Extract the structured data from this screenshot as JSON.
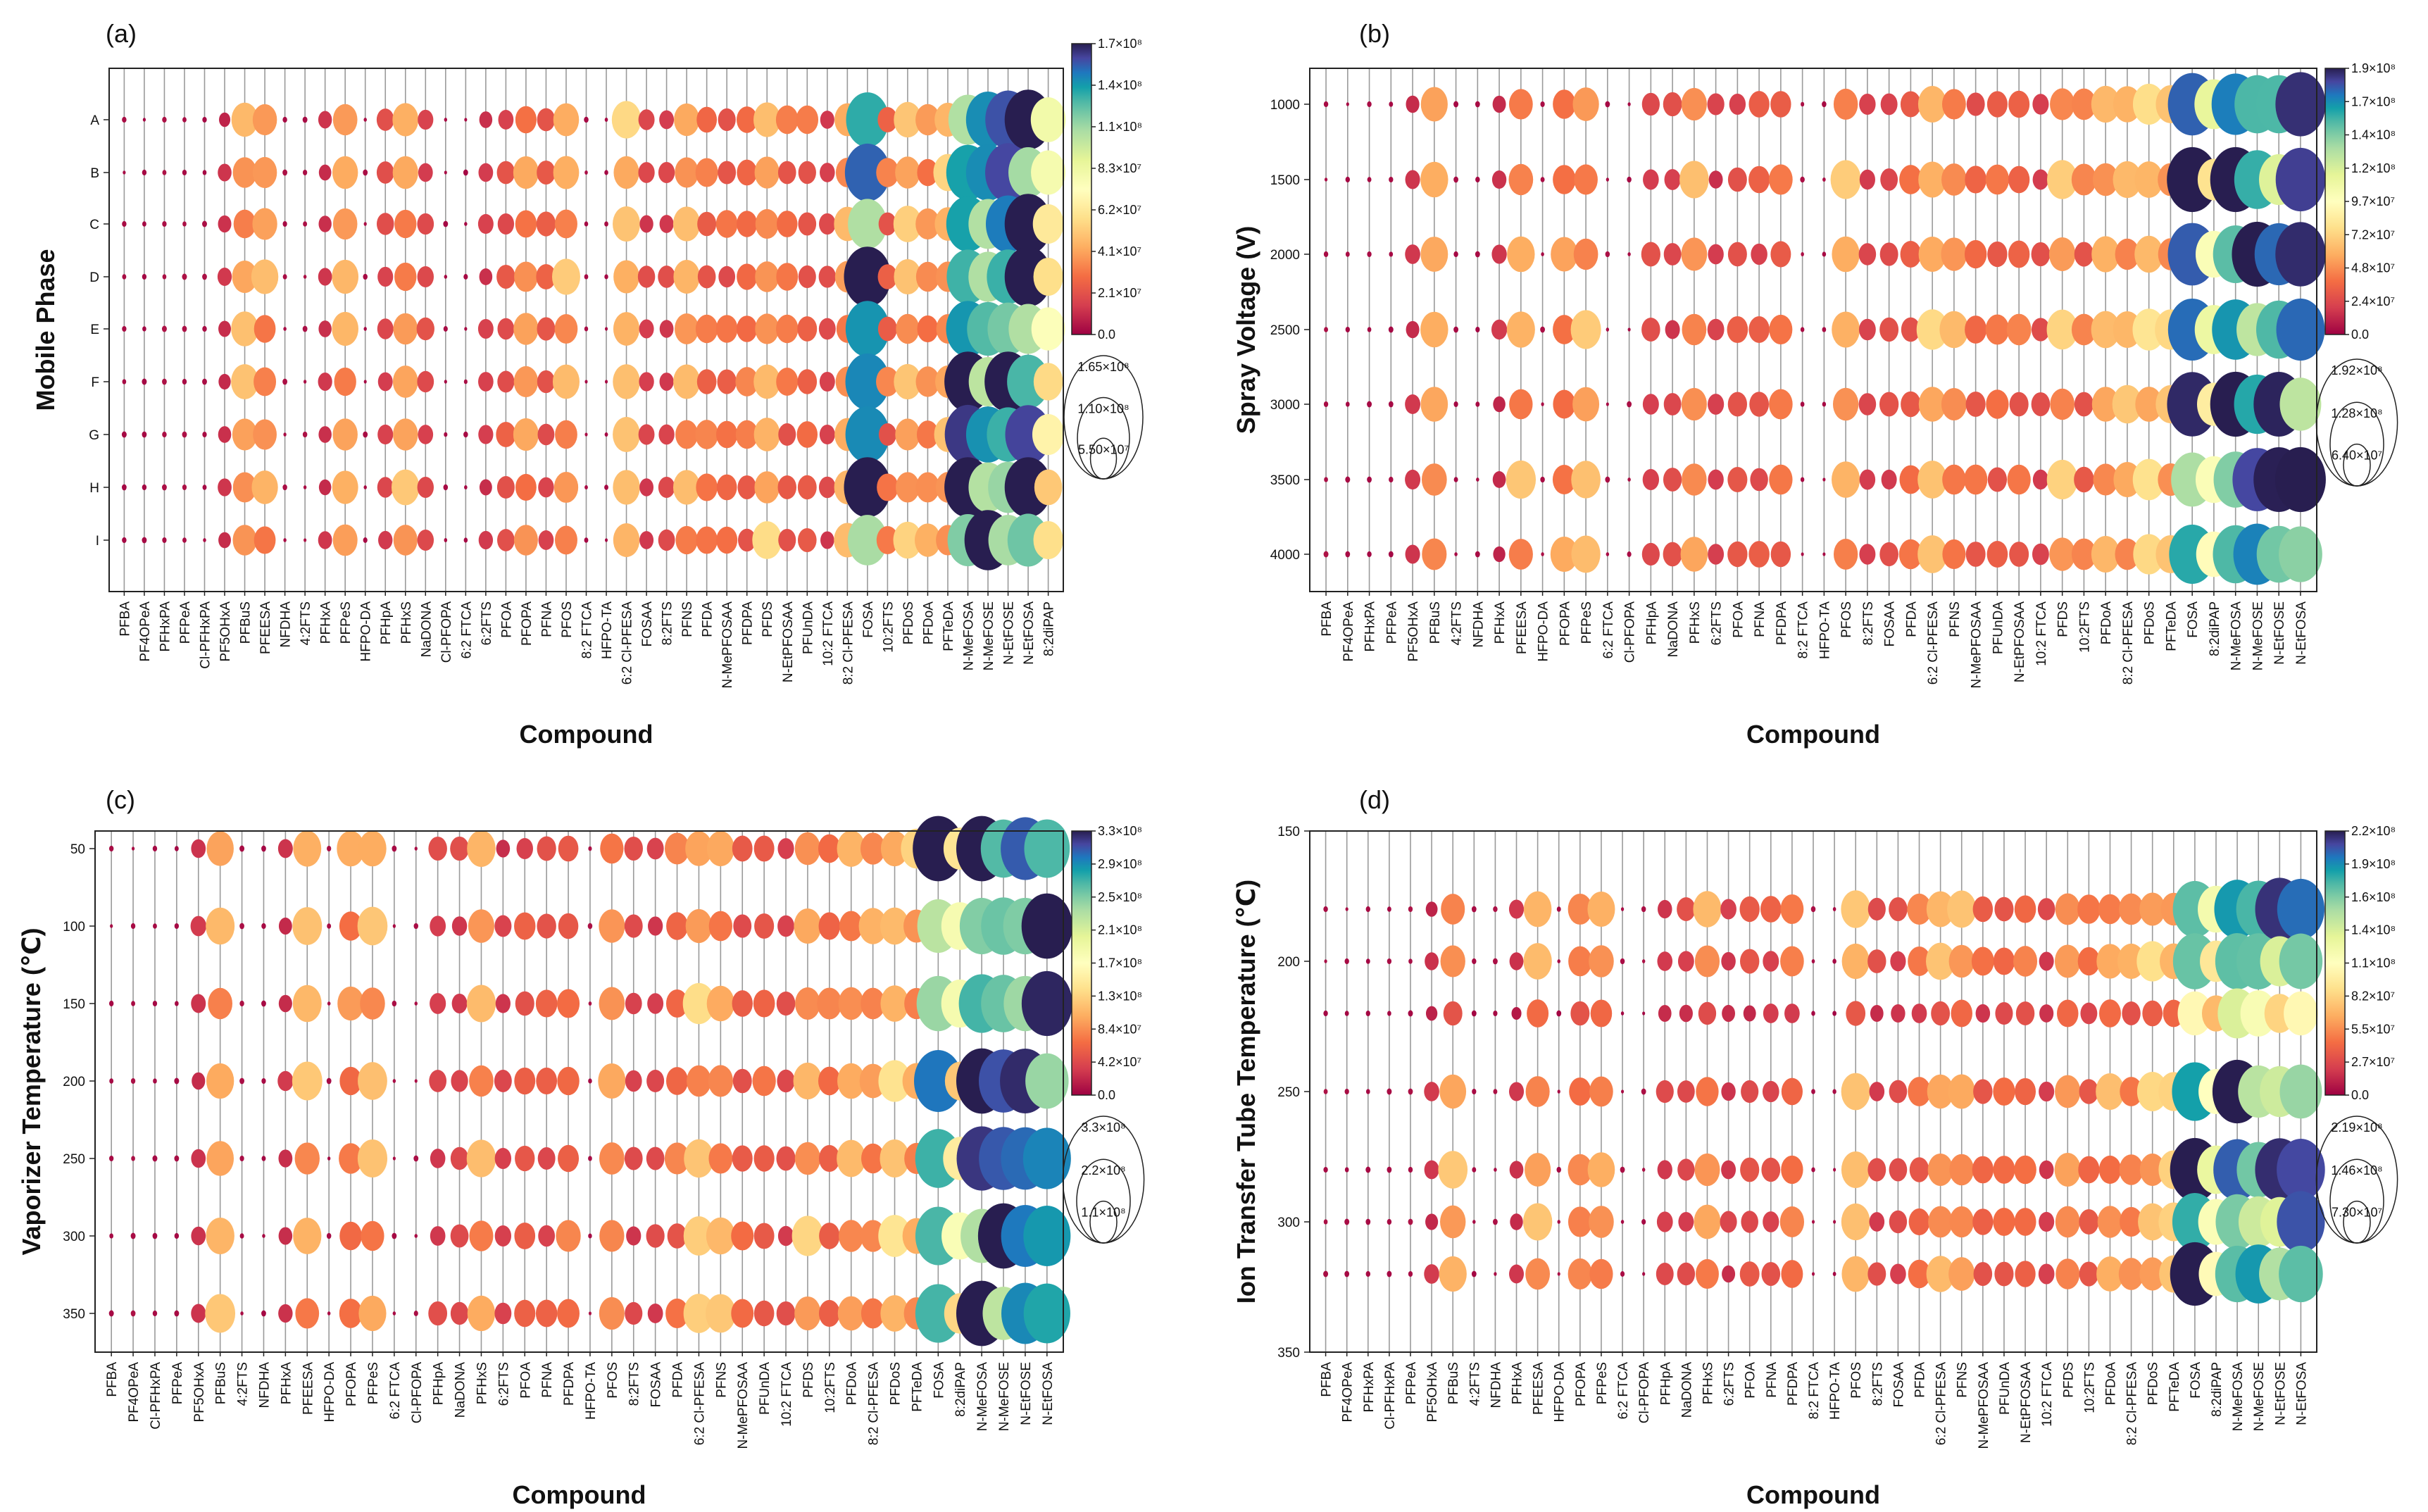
{
  "chart_data": [
    {
      "type": "bubble-heatmap",
      "panel_label": "(a)",
      "xlabel": "Compound",
      "ylabel": "Mobile Phase",
      "categories": [
        "PFBA",
        "PF4OPeA",
        "PFHxPA",
        "PFPeA",
        "Cl-PFHxPA",
        "PF5OHxA",
        "PFBuS",
        "PFEESA",
        "NFDHA",
        "4:2FTS",
        "PFHxA",
        "PFPeS",
        "HFPO-DA",
        "PFHpA",
        "PFHxS",
        "NaDONA",
        "Cl-PFOPA",
        "6:2 FTCA",
        "6:2FTS",
        "PFOA",
        "PFOPA",
        "PFNA",
        "PFOS",
        "8:2 FTCA",
        "HFPO-TA",
        "6:2 Cl-PFESA",
        "FOSAA",
        "8:2FTS",
        "PFNS",
        "PFDA",
        "N-MePFOSAA",
        "PFDPA",
        "PFDS",
        "N-EtPFOSAA",
        "PFUnDA",
        "10:2 FTCA",
        "8:2 Cl-PFESA",
        "FOSA",
        "10:2FTS",
        "PFDoS",
        "PFDoA",
        "PFTeDA",
        "N-MeFOSA",
        "N-MeFOSE",
        "N-EtFOSE",
        "N-EtFOSA",
        "8:2diPAP"
      ],
      "y_categories": [
        "A",
        "B",
        "C",
        "D",
        "E",
        "F",
        "G",
        "H",
        "I"
      ],
      "colorbar_ticks": [
        "1.7×10⁸",
        "1.4×10⁸",
        "1.1×10⁸",
        "8.3×10⁷",
        "6.2×10⁷",
        "4.1×10⁷",
        "2.1×10⁷",
        "0.0"
      ],
      "size_legend": [
        "1.65×10⁸",
        "1.10×10⁸",
        "5.50×10⁷"
      ],
      "vmax": 170000000.0
    },
    {
      "type": "bubble-heatmap",
      "panel_label": "(b)",
      "xlabel": "Compound",
      "ylabel": "Spray Voltage (V)",
      "categories": [
        "PFBA",
        "PF4OPeA",
        "PFHxPA",
        "PFPeA",
        "PF5OHxA",
        "PFBuS",
        "4:2FTS",
        "NFDHA",
        "PFHxA",
        "PFEESA",
        "HFPO-DA",
        "PFOPA",
        "PFPeS",
        "6:2 FTCA",
        "Cl-PFOPA",
        "PFHpA",
        "NaDONA",
        "PFHxS",
        "6:2FTS",
        "PFOA",
        "PFNA",
        "PFDPA",
        "8:2 FTCA",
        "HFPO-TA",
        "PFOS",
        "8:2FTS",
        "FOSAA",
        "PFDA",
        "6:2 Cl-PFESA",
        "PFNS",
        "N-MePFOSAA",
        "PFUnDA",
        "N-EtPFOSAA",
        "10:2 FTCA",
        "PFDS",
        "10:2FTS",
        "PFDoA",
        "8:2 Cl-PFESA",
        "PFDoS",
        "PFTeDA",
        "FOSA",
        "8:2diPAP",
        "N-MeFOSA",
        "N-MeFOSE",
        "N-EtFOSE",
        "N-EtFOSA"
      ],
      "y_categories": [
        "1000",
        "1500",
        "2000",
        "2500",
        "3000",
        "3500",
        "4000"
      ],
      "colorbar_ticks": [
        "1.9×10⁸",
        "1.7×10⁸",
        "1.4×10⁸",
        "1.2×10⁸",
        "9.7×10⁷",
        "7.2×10⁷",
        "4.8×10⁷",
        "2.4×10⁷",
        "0.0"
      ],
      "size_legend": [
        "1.92×10⁸",
        "1.28×10⁸",
        "6.40×10⁷"
      ],
      "vmax": 190000000.0
    },
    {
      "type": "bubble-heatmap",
      "panel_label": "(c)",
      "xlabel": "Compound",
      "ylabel": "Vaporizer Temperature (℃)",
      "categories": [
        "PFBA",
        "PF4OPeA",
        "Cl-PFHxPA",
        "PFPeA",
        "PF5OHxA",
        "PFBuS",
        "4:2FTS",
        "NFDHA",
        "PFHxA",
        "PFEESA",
        "HFPO-DA",
        "PFOPA",
        "PFPeS",
        "6:2 FTCA",
        "Cl-PFOPA",
        "PFHpA",
        "NaDONA",
        "PFHxS",
        "6:2FTS",
        "PFOA",
        "PFNA",
        "PFDPA",
        "HFPO-TA",
        "PFOS",
        "8:2FTS",
        "FOSAA",
        "PFDA",
        "6:2 Cl-PFESA",
        "PFNS",
        "N-MePFOSAA",
        "PFUnDA",
        "10:2 FTCA",
        "PFDS",
        "10:2FTS",
        "PFDoA",
        "8:2 Cl-PFESA",
        "PFDoS",
        "PFTeDA",
        "FOSA",
        "8:2diPAP",
        "N-MeFOSA",
        "N-MeFOSE",
        "N-EtFOSE",
        "N-EtFOSA"
      ],
      "y_categories": [
        "50",
        "100",
        "150",
        "200",
        "250",
        "300",
        "350"
      ],
      "colorbar_ticks": [
        "3.3×10⁸",
        "2.9×10⁸",
        "2.5×10⁸",
        "2.1×10⁸",
        "1.7×10⁸",
        "1.3×10⁸",
        "8.4×10⁷",
        "4.2×10⁷",
        "0.0"
      ],
      "size_legend": [
        "3.3×10⁸",
        "2.2×10⁸",
        "1.1×10⁸"
      ],
      "vmax": 330000000.0
    },
    {
      "type": "bubble-heatmap",
      "panel_label": "(d)",
      "xlabel": "Compound",
      "ylabel": "Ion Transfer Tube Temperature (℃)",
      "categories": [
        "PFBA",
        "PF4OPeA",
        "PFHxPA",
        "Cl-PFHxPA",
        "PFPeA",
        "PF5OHxA",
        "PFBuS",
        "4:2FTS",
        "NFDHA",
        "PFHxA",
        "PFEESA",
        "HFPO-DA",
        "PFOPA",
        "PFPeS",
        "6:2 FTCA",
        "Cl-PFOPA",
        "PFHpA",
        "NaDONA",
        "PFHxS",
        "6:2FTS",
        "PFOA",
        "PFNA",
        "PFDPA",
        "8:2 FTCA",
        "HFPO-TA",
        "PFOS",
        "8:2FTS",
        "FOSAA",
        "PFDA",
        "6:2 Cl-PFESA",
        "PFNS",
        "N-MePFOSAA",
        "PFUnDA",
        "N-EtPFOSAA",
        "10:2 FTCA",
        "PFDS",
        "10:2FTS",
        "PFDoA",
        "8:2 Cl-PFESA",
        "PFDoS",
        "PFTeDA",
        "FOSA",
        "8:2diPAP",
        "N-MeFOSA",
        "N-MeFOSE",
        "N-EtFOSE",
        "N-EtFOSA"
      ],
      "y_categories": [
        "150",
        "200",
        "250",
        "300",
        "350"
      ],
      "y_points": [
        "180",
        "200",
        "220",
        "250",
        "280",
        "300",
        "320"
      ],
      "colorbar_ticks": [
        "2.2×10⁸",
        "1.9×10⁸",
        "1.6×10⁸",
        "1.4×10⁸",
        "1.1×10⁸",
        "8.2×10⁷",
        "5.5×10⁷",
        "2.7×10⁷",
        "0.0"
      ],
      "size_legend": [
        "2.19×10⁸",
        "1.46×10⁸",
        "7.30×10⁷"
      ],
      "vmax": 220000000.0
    }
  ]
}
